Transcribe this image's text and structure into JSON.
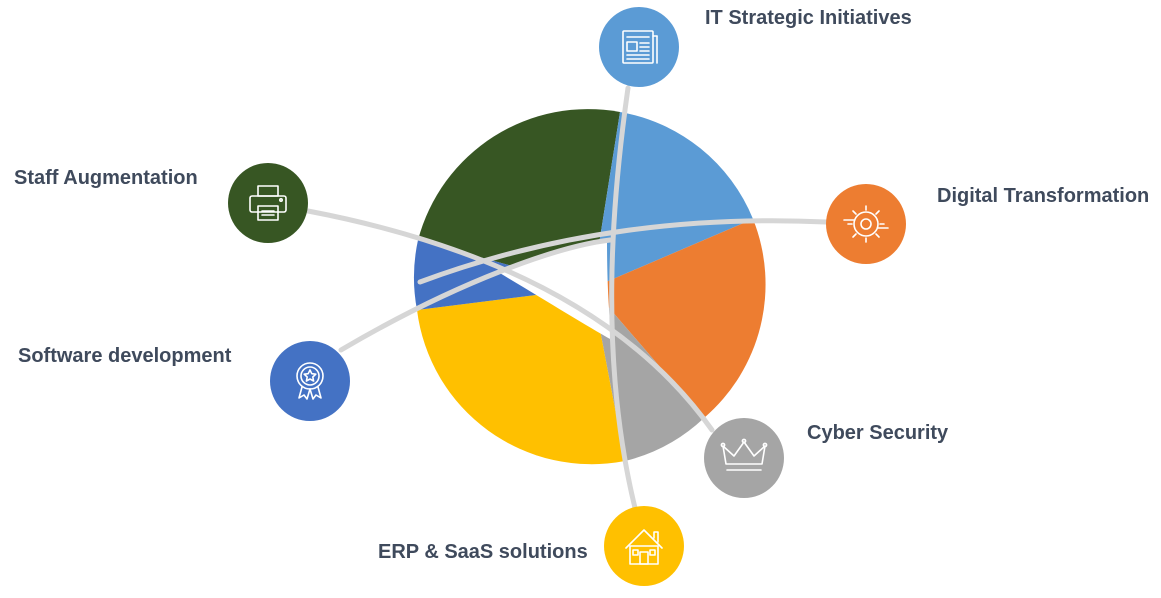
{
  "diagram": {
    "items": [
      {
        "label": "IT Strategic Initiatives",
        "color": "#5B9BD5",
        "icon": "newspaper-icon"
      },
      {
        "label": "Digital Transformation",
        "color": "#ED7D31",
        "icon": "gear-icon"
      },
      {
        "label": "Cyber Security",
        "color": "#A5A5A5",
        "icon": "crown-icon"
      },
      {
        "label": "ERP & SaaS solutions",
        "color": "#FFC000",
        "icon": "house-icon"
      },
      {
        "label": "Software development",
        "color": "#4472C4",
        "icon": "award-badge-icon"
      },
      {
        "label": "Staff Augmentation",
        "color": "#375623",
        "icon": "printer-icon"
      }
    ]
  }
}
